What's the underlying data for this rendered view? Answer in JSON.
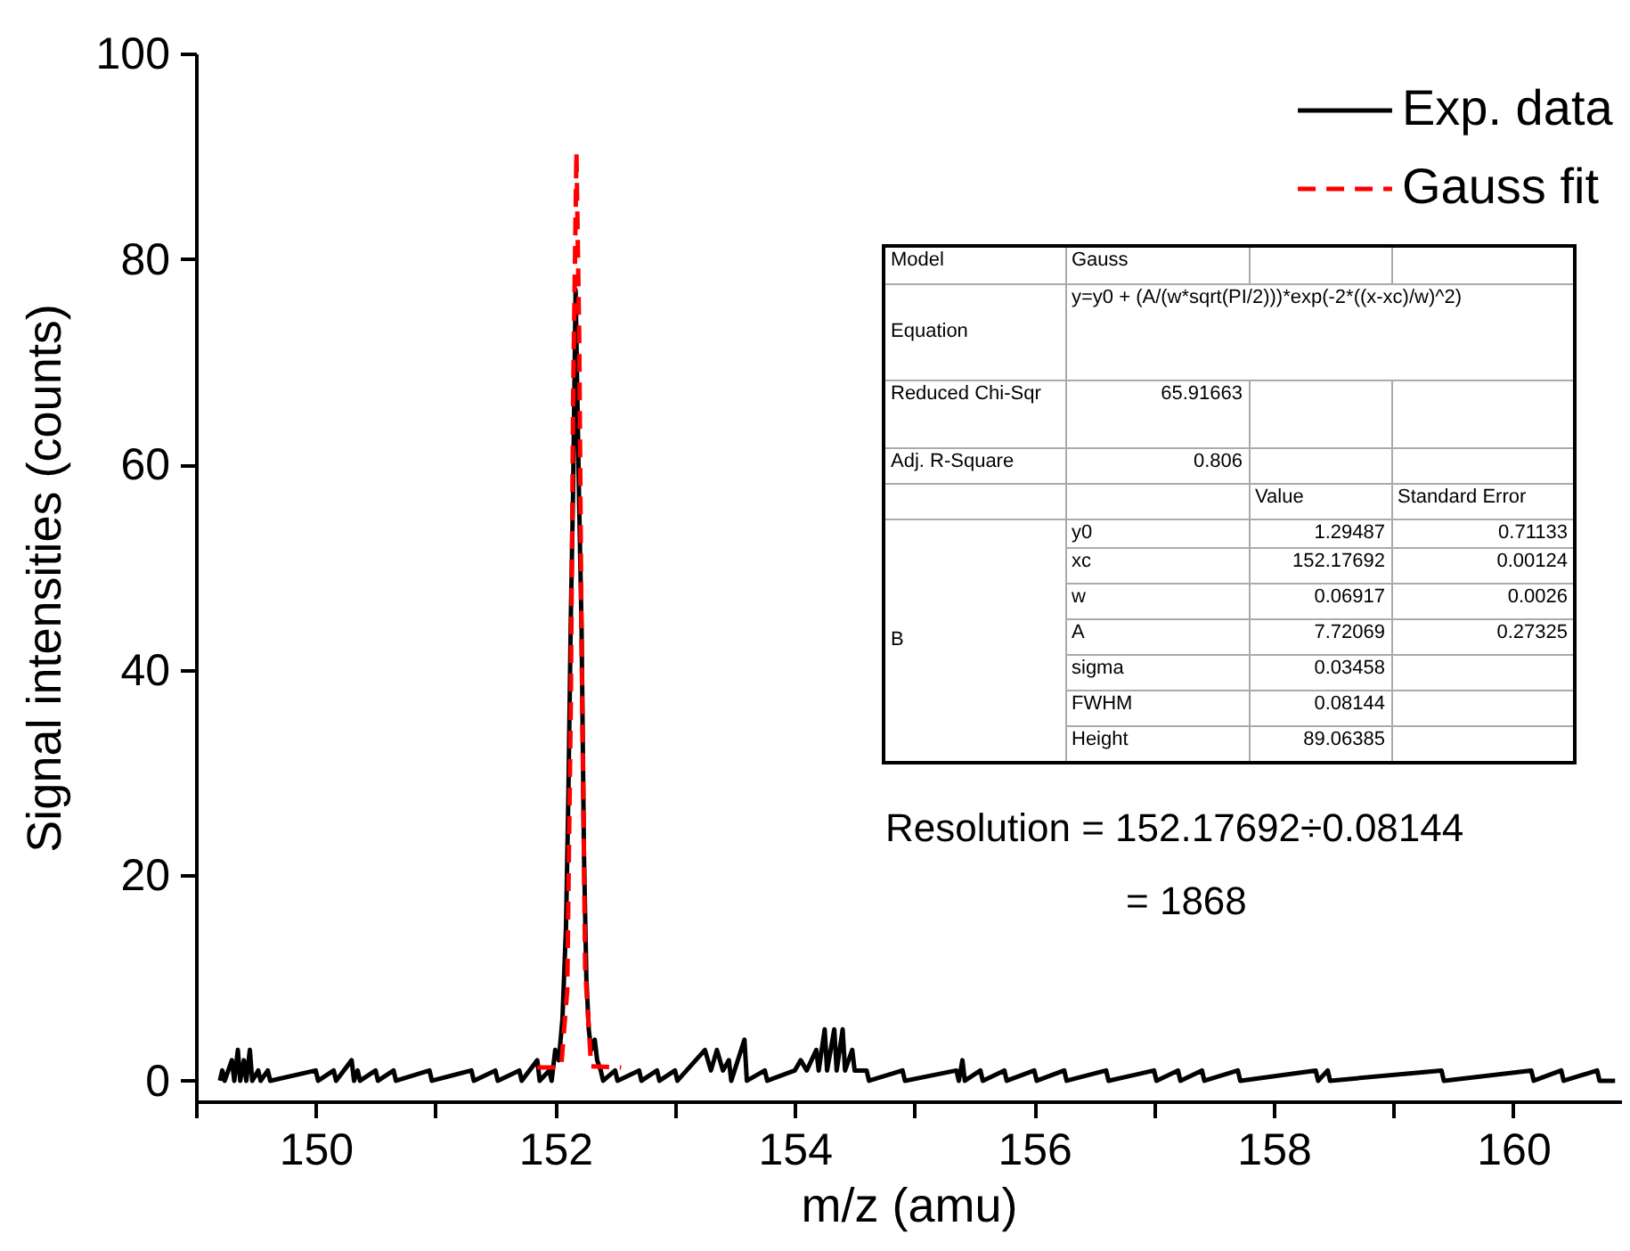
{
  "chart_data": {
    "type": "line",
    "xlabel": "m/z (amu)",
    "ylabel": "Signal intensities (counts)",
    "xlim": [
      149,
      160.9
    ],
    "ylim": [
      -2,
      100
    ],
    "xticks": [
      {
        "value": 149,
        "label": null
      },
      150,
      {
        "value": 151,
        "label": null
      },
      152,
      {
        "value": 153,
        "label": null
      },
      154,
      {
        "value": 155,
        "label": null
      },
      156,
      {
        "value": 157,
        "label": null
      },
      158,
      {
        "value": 159,
        "label": null
      },
      160
    ],
    "yticks": [
      0,
      20,
      40,
      60,
      80,
      100
    ],
    "legend": "top right",
    "series": [
      {
        "name": "Exp. data",
        "color": "#000000",
        "line_style": "solid",
        "x": [
          149.2,
          149.22,
          149.24,
          149.3,
          149.32,
          149.35,
          149.37,
          149.4,
          149.42,
          149.45,
          149.47,
          149.52,
          149.54,
          149.6,
          149.62,
          150.0,
          150.02,
          150.15,
          150.17,
          150.3,
          150.32,
          150.35,
          150.37,
          150.5,
          150.52,
          150.65,
          150.67,
          150.95,
          150.97,
          151.3,
          151.32,
          151.5,
          151.52,
          151.7,
          151.72,
          151.85,
          151.87,
          151.95,
          151.97,
          152.0,
          152.03,
          152.06,
          152.09,
          152.11,
          152.13,
          152.15,
          152.17,
          152.19,
          152.2,
          152.22,
          152.24,
          152.26,
          152.28,
          152.3,
          152.33,
          152.35,
          152.38,
          152.4,
          152.5,
          152.52,
          152.7,
          152.72,
          152.85,
          152.87,
          153.0,
          153.02,
          153.25,
          153.3,
          153.35,
          153.4,
          153.45,
          153.47,
          153.58,
          153.6,
          153.75,
          153.77,
          154.0,
          154.05,
          154.1,
          154.18,
          154.2,
          154.25,
          154.27,
          154.33,
          154.35,
          154.4,
          154.42,
          154.48,
          154.5,
          154.6,
          154.62,
          154.9,
          154.92,
          155.35,
          155.37,
          155.4,
          155.42,
          155.55,
          155.57,
          155.75,
          155.77,
          156.0,
          156.02,
          156.25,
          156.27,
          156.6,
          156.62,
          157.0,
          157.02,
          157.2,
          157.22,
          157.4,
          157.42,
          157.7,
          157.72,
          158.35,
          158.37,
          158.45,
          158.47,
          159.4,
          159.42,
          160.15,
          160.17,
          160.4,
          160.42,
          160.7,
          160.72,
          160.85
        ],
        "values": [
          0,
          1,
          0,
          2,
          0,
          3,
          0,
          2,
          0,
          3,
          0,
          1,
          0,
          1,
          0,
          1,
          0,
          1,
          0,
          2,
          0,
          1,
          0,
          1,
          0,
          1,
          0,
          1,
          0,
          1,
          0,
          1,
          0,
          1,
          0,
          2,
          0,
          1,
          0,
          3,
          2,
          6,
          15,
          28,
          45,
          58,
          77,
          63,
          56,
          44,
          22,
          10,
          5,
          3,
          4,
          2,
          1,
          0,
          1,
          0,
          1,
          0,
          1,
          0,
          1,
          0,
          3,
          1,
          3,
          1,
          2,
          0,
          4,
          0,
          1,
          0,
          1,
          2,
          1,
          3,
          1,
          5,
          1,
          5,
          1,
          5,
          1,
          3,
          1,
          1,
          0,
          1,
          0,
          1,
          0,
          2,
          0,
          1,
          0,
          1,
          0,
          1,
          0,
          1,
          0,
          1,
          0,
          1,
          0,
          1,
          0,
          1,
          0,
          1,
          0,
          1,
          0,
          1,
          0,
          1,
          0,
          1,
          0,
          1,
          0,
          1,
          0,
          0
        ]
      },
      {
        "name": "Gauss fit",
        "color": "#ff0000",
        "line_style": "dashed",
        "x": [
          151.85,
          152.0,
          152.05,
          152.1,
          152.13,
          152.15,
          152.177,
          152.2,
          152.22,
          152.25,
          152.3,
          152.55
        ],
        "values": [
          1.3,
          1.3,
          1.4,
          8.8,
          36.6,
          66.9,
          90.4,
          72.6,
          42.5,
          10.9,
          1.4,
          1.3
        ]
      }
    ],
    "annotations": [
      "Model",
      "Gauss",
      "Equation",
      "y=y0 + (A/(w*sqrt(PI/2)))*exp(-2*((x-xc)/w)^2)",
      "Reduced Chi-Sqr",
      "65.91663",
      "Adj. R-Square",
      "0.806",
      "Value",
      "Standard Error",
      "B",
      "y0",
      "1.29487",
      "0.71133",
      "xc",
      "152.17692",
      "0.00124",
      "w",
      "0.06917",
      "0.0026",
      "A",
      "7.72069",
      "0.27325",
      "sigma",
      "0.03458",
      "FWHM",
      "0.08144",
      "Height",
      "89.06385",
      "Resolution = 152.17692÷0.08144",
      "= 1868"
    ]
  }
}
